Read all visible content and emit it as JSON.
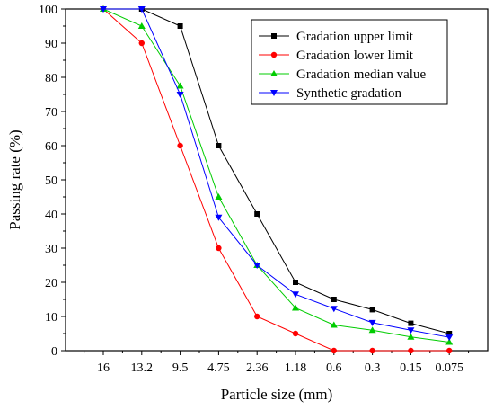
{
  "chart_data": {
    "type": "line",
    "title": "",
    "xlabel": "Particle size (mm)",
    "ylabel": "Passing rate (%)",
    "categories": [
      "16",
      "13.2",
      "9.5",
      "4.75",
      "2.36",
      "1.18",
      "0.6",
      "0.3",
      "0.15",
      "0.075"
    ],
    "ylim": [
      0,
      100
    ],
    "yticks": [
      0,
      10,
      20,
      30,
      40,
      50,
      60,
      70,
      80,
      90,
      100
    ],
    "grid": false,
    "legend_position": "top-right",
    "series": [
      {
        "name": "Gradation upper limit",
        "color": "#000000",
        "marker": "square",
        "values": [
          100,
          100,
          95,
          60,
          40,
          20,
          15,
          12,
          8,
          5
        ]
      },
      {
        "name": "Gradation lower limit",
        "color": "#ff0000",
        "marker": "circle",
        "values": [
          100,
          90,
          60,
          30,
          10,
          5,
          0,
          0,
          0,
          0
        ]
      },
      {
        "name": "Gradation median value",
        "color": "#00cc00",
        "marker": "triangle-up",
        "values": [
          100,
          95,
          77.5,
          45,
          25,
          12.5,
          7.5,
          6,
          4,
          2.5
        ]
      },
      {
        "name": "Synthetic gradation",
        "color": "#0000ff",
        "marker": "triangle-down",
        "values": [
          100,
          100,
          75,
          39,
          25,
          16.5,
          12.3,
          8.2,
          6,
          3.9
        ]
      }
    ]
  }
}
